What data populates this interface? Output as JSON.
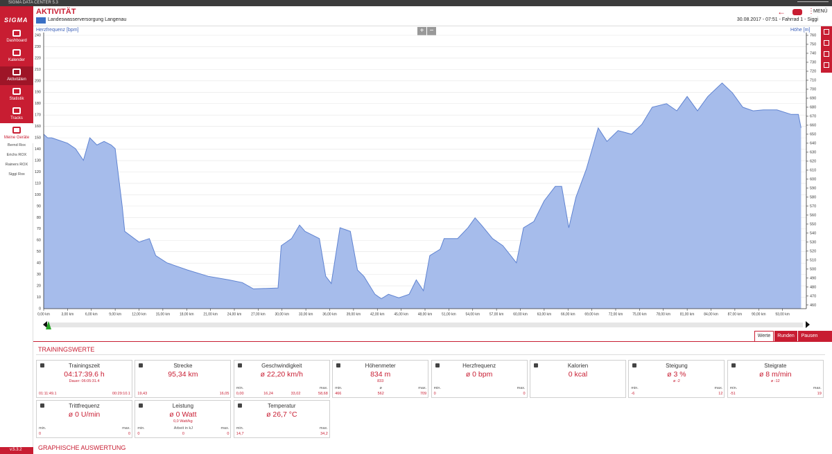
{
  "window_title": "SIGMA DATA CENTER 5.3",
  "logo": "SIGMA",
  "nav": [
    "Dashboard",
    "Kalender",
    "Aktivitäten",
    "Statistik",
    "Tracks",
    "Meine Geräte"
  ],
  "devices": [
    "Bernd Rox",
    "Erichs ROX",
    "Rainers ROX",
    "Siggi Rox"
  ],
  "version": "v.5.3.2",
  "header": {
    "title": "AKTIVITÄT",
    "activity": "Landeswasserversorgung Langenau",
    "info": "30.08.2017  -  07:51  -  Fahrrad 1  -  Siggi",
    "menu": "MENÜ"
  },
  "chart_data": {
    "type": "area",
    "y_label": "Herzfrequenz [bpm]",
    "y2_label": "Höhe [m]",
    "xlim": [
      0,
      96
    ],
    "xticks": [
      {
        "value": 0,
        "label": "0,00 km"
      },
      {
        "value": 3,
        "label": "3,00 km"
      },
      {
        "value": 6,
        "label": "6,00 km"
      },
      {
        "value": 9,
        "label": "9,00 km"
      },
      {
        "value": 12,
        "label": "12,00 km"
      },
      {
        "value": 15,
        "label": "15,00 km"
      },
      {
        "value": 18,
        "label": "18,00 km"
      },
      {
        "value": 21,
        "label": "21,00 km"
      },
      {
        "value": 24,
        "label": "24,00 km"
      },
      {
        "value": 27,
        "label": "27,00 km"
      },
      {
        "value": 30,
        "label": "30,00 km"
      },
      {
        "value": 33,
        "label": "33,00 km"
      },
      {
        "value": 36,
        "label": "36,00 km"
      },
      {
        "value": 39,
        "label": "39,00 km"
      },
      {
        "value": 42,
        "label": "42,00 km"
      },
      {
        "value": 45,
        "label": "45,00 km"
      },
      {
        "value": 48,
        "label": "48,00 km"
      },
      {
        "value": 51,
        "label": "51,00 km"
      },
      {
        "value": 54,
        "label": "54,00 km"
      },
      {
        "value": 57,
        "label": "57,00 km"
      },
      {
        "value": 60,
        "label": "60,00 km"
      },
      {
        "value": 63,
        "label": "63,00 km"
      },
      {
        "value": 66,
        "label": "66,00 km"
      },
      {
        "value": 69,
        "label": "69,00 km"
      },
      {
        "value": 72,
        "label": "72,00 km"
      },
      {
        "value": 75,
        "label": "75,00 km"
      },
      {
        "value": 78,
        "label": "78,00 km"
      },
      {
        "value": 81,
        "label": "81,00 km"
      },
      {
        "value": 84,
        "label": "84,00 km"
      },
      {
        "value": 87,
        "label": "87,00 km"
      },
      {
        "value": 90,
        "label": "90,00 km"
      },
      {
        "value": 93,
        "label": "93,00 km"
      }
    ],
    "ylim": [
      0,
      240
    ],
    "yticks": [
      0,
      10,
      20,
      30,
      40,
      50,
      60,
      70,
      80,
      90,
      100,
      110,
      120,
      130,
      140,
      150,
      160,
      170,
      180,
      190,
      200,
      210,
      220,
      230,
      240
    ],
    "y2lim": [
      456,
      760
    ],
    "y2ticks": [
      460,
      470,
      480,
      490,
      500,
      510,
      520,
      530,
      540,
      550,
      560,
      570,
      580,
      590,
      600,
      610,
      620,
      630,
      640,
      650,
      660,
      670,
      680,
      690,
      700,
      710,
      720,
      730,
      740,
      750,
      760
    ],
    "grid": true,
    "x": [
      0,
      0.5,
      1,
      2,
      3,
      4,
      5,
      5.8,
      6.7,
      7.6,
      8.5,
      9,
      9.9,
      10.2,
      12,
      13.3,
      14.1,
      15.5,
      18.1,
      20.7,
      23.3,
      25,
      26.4,
      29.5,
      29.9,
      31.2,
      32.2,
      32.9,
      34.7,
      35.5,
      36.2,
      37.3,
      38.6,
      39.5,
      40.3,
      41.7,
      42.5,
      43.4,
      44.7,
      46,
      46.9,
      47.8,
      48.6,
      49.9,
      50.4,
      52.1,
      53.4,
      54.3,
      55.1,
      56.5,
      57.8,
      59.5,
      60.4,
      61.7,
      63,
      64.4,
      65.2,
      66.1,
      67,
      68.3,
      69.8,
      70.9,
      72.3,
      74,
      75.3,
      76.6,
      78.4,
      79.7,
      81,
      82.3,
      83.6,
      85.4,
      86.7,
      88,
      89.3,
      90.6,
      92.3,
      94.1,
      95,
      95.34
    ],
    "series": [
      {
        "color": "#5f83d1",
        "fill": "#a6bceb",
        "axis": "y2",
        "values": [
          650,
          646,
          646,
          643,
          640,
          634,
          621,
          646,
          638,
          642,
          638,
          634,
          569,
          542,
          530,
          534,
          515,
          507,
          499,
          492,
          488,
          485,
          478,
          479,
          526,
          534,
          549,
          542,
          534,
          492,
          484,
          546,
          542,
          499,
          492,
          472,
          467,
          472,
          468,
          472,
          488,
          476,
          515,
          522,
          534,
          534,
          546,
          557,
          549,
          534,
          526,
          507,
          546,
          553,
          576,
          592,
          592,
          546,
          580,
          611,
          657,
          642,
          654,
          650,
          661,
          680,
          684,
          676,
          692,
          676,
          692,
          707,
          696,
          680,
          676,
          677,
          677,
          672,
          672,
          657
        ]
      }
    ]
  },
  "tabs": [
    "Werte",
    "Runden",
    "Pausen"
  ],
  "section_title": "TRAININGSWERTE",
  "cards": [
    {
      "title": "Trainingszeit",
      "value": "04:17:39.6 h",
      "sub": "Dauer:  06:05:31.4",
      "footer": [
        {
          "value": "01:11:49.1"
        },
        {
          "value": "00:29:10.1"
        }
      ]
    },
    {
      "title": "Strecke",
      "value": "95,34 km",
      "footer": [
        {
          "value": "19,43"
        },
        {
          "value": "16,05"
        }
      ]
    },
    {
      "title": "Geschwindigkeit",
      "value": "ø 22,20 km/h",
      "footer": [
        {
          "label": "min.",
          "value": "0,00"
        },
        {
          "value": "16,24"
        },
        {
          "value": "33,02"
        },
        {
          "label": "max.",
          "value": "58,68"
        }
      ]
    },
    {
      "title": "Höhenmeter",
      "value": "834 m",
      "sub": "833",
      "footer": [
        {
          "label": "min.",
          "value": "466"
        },
        {
          "label": "ø",
          "value": "562"
        },
        {
          "label": "max.",
          "value": "709"
        }
      ]
    },
    {
      "title": "Herzfrequenz",
      "value": "ø 0 bpm",
      "footer": [
        {
          "label": "min.",
          "value": "0"
        },
        {
          "label": "max.",
          "value": "0"
        }
      ]
    },
    {
      "title": "Kalorien",
      "value": "0 kcal"
    },
    {
      "title": "Steigung",
      "value": "ø 3 %",
      "sub": "ø -2",
      "footer": [
        {
          "label": "min.",
          "value": "-6"
        },
        {
          "label": "max.",
          "value": "12"
        }
      ]
    },
    {
      "title": "Steigrate",
      "value": "ø 8 m/min",
      "sub": "ø -12",
      "footer": [
        {
          "label": "min.",
          "value": "-51"
        },
        {
          "label": "max.",
          "value": "19"
        }
      ]
    },
    {
      "title": "Trittfrequenz",
      "value": "ø 0 U/min",
      "footer": [
        {
          "label": "min.",
          "value": "0"
        },
        {
          "label": "max.",
          "value": "0"
        }
      ]
    },
    {
      "title": "Leistung",
      "value": "ø 0 Watt",
      "sub": "0,0 Watt/kg",
      "footer": [
        {
          "label": "min.",
          "value": "0"
        },
        {
          "label": "Arbeit in kJ",
          "value": "0"
        },
        {
          "label": "max.",
          "value": "0"
        }
      ]
    },
    {
      "title": "Temperatur",
      "value": "ø 26,7 °C",
      "footer": [
        {
          "label": "min.",
          "value": "14,7"
        },
        {
          "label": "max.",
          "value": "34,2"
        }
      ]
    }
  ],
  "section2_title": "GRAPHISCHE AUSWERTUNG"
}
